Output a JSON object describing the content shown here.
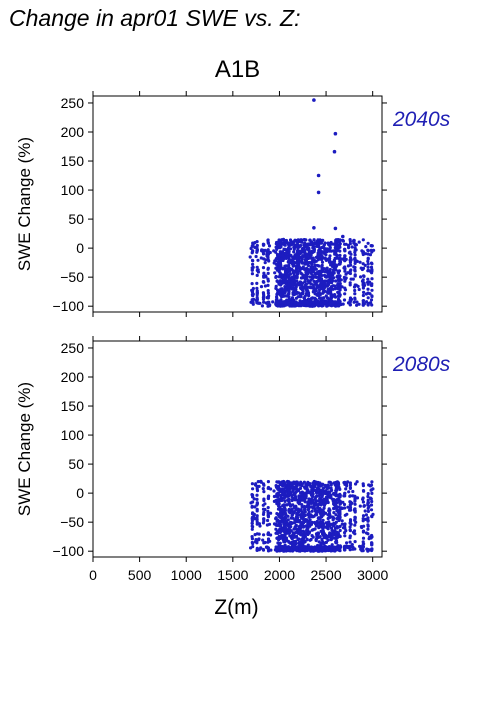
{
  "title": "Change in apr01 SWE vs. Z:",
  "scenario": "A1B",
  "colors": {
    "points": "#1c1cc0",
    "period_label": "#1f1fb4"
  },
  "chart_data": [
    {
      "type": "scatter",
      "period": "2040s",
      "xlabel": "Z(m)",
      "ylabel": "SWE Change (%)",
      "xlim": [
        0,
        3100
      ],
      "ylim": [
        -110,
        262
      ],
      "xticks": [
        0,
        500,
        1000,
        1500,
        2000,
        2500,
        3000
      ],
      "yticks": [
        -100,
        -50,
        0,
        50,
        100,
        150,
        200,
        250
      ],
      "outliers": [
        [
          2370,
          255
        ],
        [
          2600,
          197
        ],
        [
          2590,
          166
        ],
        [
          2420,
          125
        ],
        [
          2420,
          96
        ],
        [
          2600,
          34
        ],
        [
          2370,
          35
        ],
        [
          2680,
          20
        ],
        [
          2800,
          13
        ]
      ],
      "cloud": {
        "x_range": [
          1680,
          3010
        ],
        "y_range": [
          -100,
          15
        ],
        "dense_x_range": [
          1960,
          2650
        ]
      }
    },
    {
      "type": "scatter",
      "period": "2080s",
      "xlabel": "Z(m)",
      "ylabel": "SWE Change (%)",
      "xlim": [
        0,
        3100
      ],
      "ylim": [
        -110,
        262
      ],
      "xticks": [
        0,
        500,
        1000,
        1500,
        2000,
        2500,
        3000
      ],
      "yticks": [
        -100,
        -50,
        0,
        50,
        100,
        150,
        200,
        250
      ],
      "outliers": [
        [
          1800,
          20
        ],
        [
          2050,
          19
        ],
        [
          2300,
          16
        ],
        [
          2500,
          12
        ]
      ],
      "cloud": {
        "x_range": [
          1690,
          3010
        ],
        "y_range": [
          -100,
          20
        ],
        "dense_x_range": [
          1960,
          2650
        ]
      }
    }
  ]
}
